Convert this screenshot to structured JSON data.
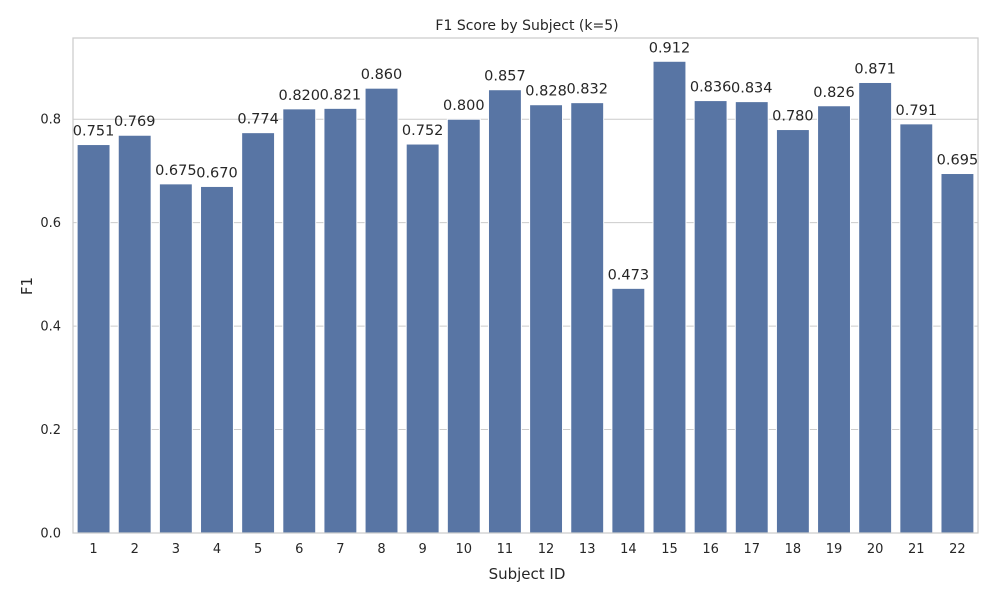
{
  "chart_data": {
    "type": "bar",
    "title": "F1 Score by Subject (k=5)",
    "xlabel": "Subject ID",
    "ylabel": "F1",
    "categories": [
      "1",
      "2",
      "3",
      "4",
      "5",
      "6",
      "7",
      "8",
      "9",
      "10",
      "11",
      "12",
      "13",
      "14",
      "15",
      "16",
      "17",
      "18",
      "19",
      "20",
      "21",
      "22"
    ],
    "values": [
      0.751,
      0.769,
      0.675,
      0.67,
      0.774,
      0.82,
      0.821,
      0.86,
      0.752,
      0.8,
      0.857,
      0.828,
      0.832,
      0.473,
      0.912,
      0.836,
      0.834,
      0.78,
      0.826,
      0.871,
      0.791,
      0.695
    ],
    "data_labels": [
      "0.751",
      "0.769",
      "0.675",
      "0.670",
      "0.774",
      "0.820",
      "0.821",
      "0.860",
      "0.752",
      "0.800",
      "0.857",
      "0.828",
      "0.832",
      "0.473",
      "0.912",
      "0.836",
      "0.834",
      "0.780",
      "0.826",
      "0.871",
      "0.791",
      "0.695"
    ],
    "ylim": [
      0,
      0.957
    ],
    "yticks": [
      0.0,
      0.2,
      0.4,
      0.6,
      0.8
    ],
    "ytick_labels": [
      "0.0",
      "0.2",
      "0.4",
      "0.6",
      "0.8"
    ],
    "grid": true,
    "bar_color": "#5875a4",
    "grid_color": "#cccccc"
  }
}
